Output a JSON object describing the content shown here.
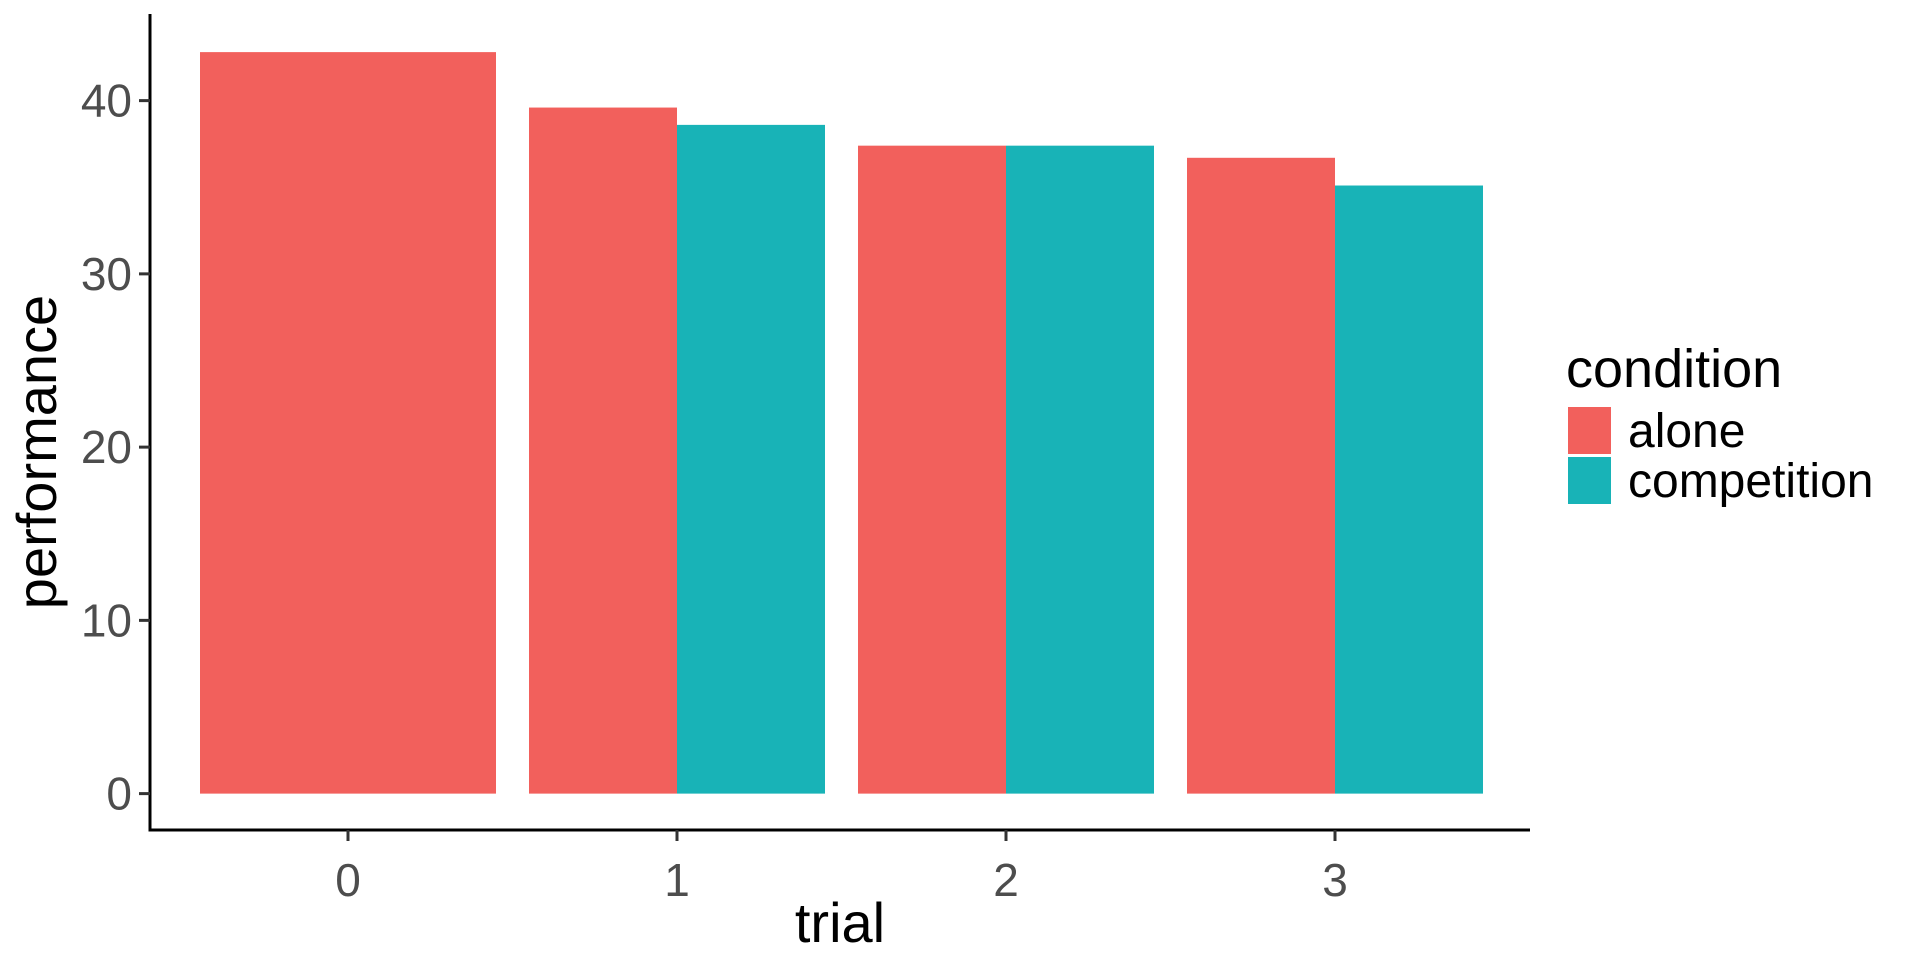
{
  "chart_data": {
    "type": "bar",
    "title": "",
    "xlabel": "trial",
    "ylabel": "performance",
    "categories": [
      "0",
      "1",
      "2",
      "3"
    ],
    "series": [
      {
        "name": "alone",
        "color": "#f2605c",
        "values": [
          42.8,
          39.6,
          37.4,
          36.7
        ]
      },
      {
        "name": "competition",
        "color": "#18b3b7",
        "values": [
          null,
          38.6,
          37.4,
          35.1
        ]
      }
    ],
    "ylim": [
      -2.1,
      45
    ],
    "yticks": [
      0,
      10,
      20,
      30,
      40
    ],
    "grid": false,
    "legend": {
      "title": "condition",
      "placement": "right"
    }
  }
}
